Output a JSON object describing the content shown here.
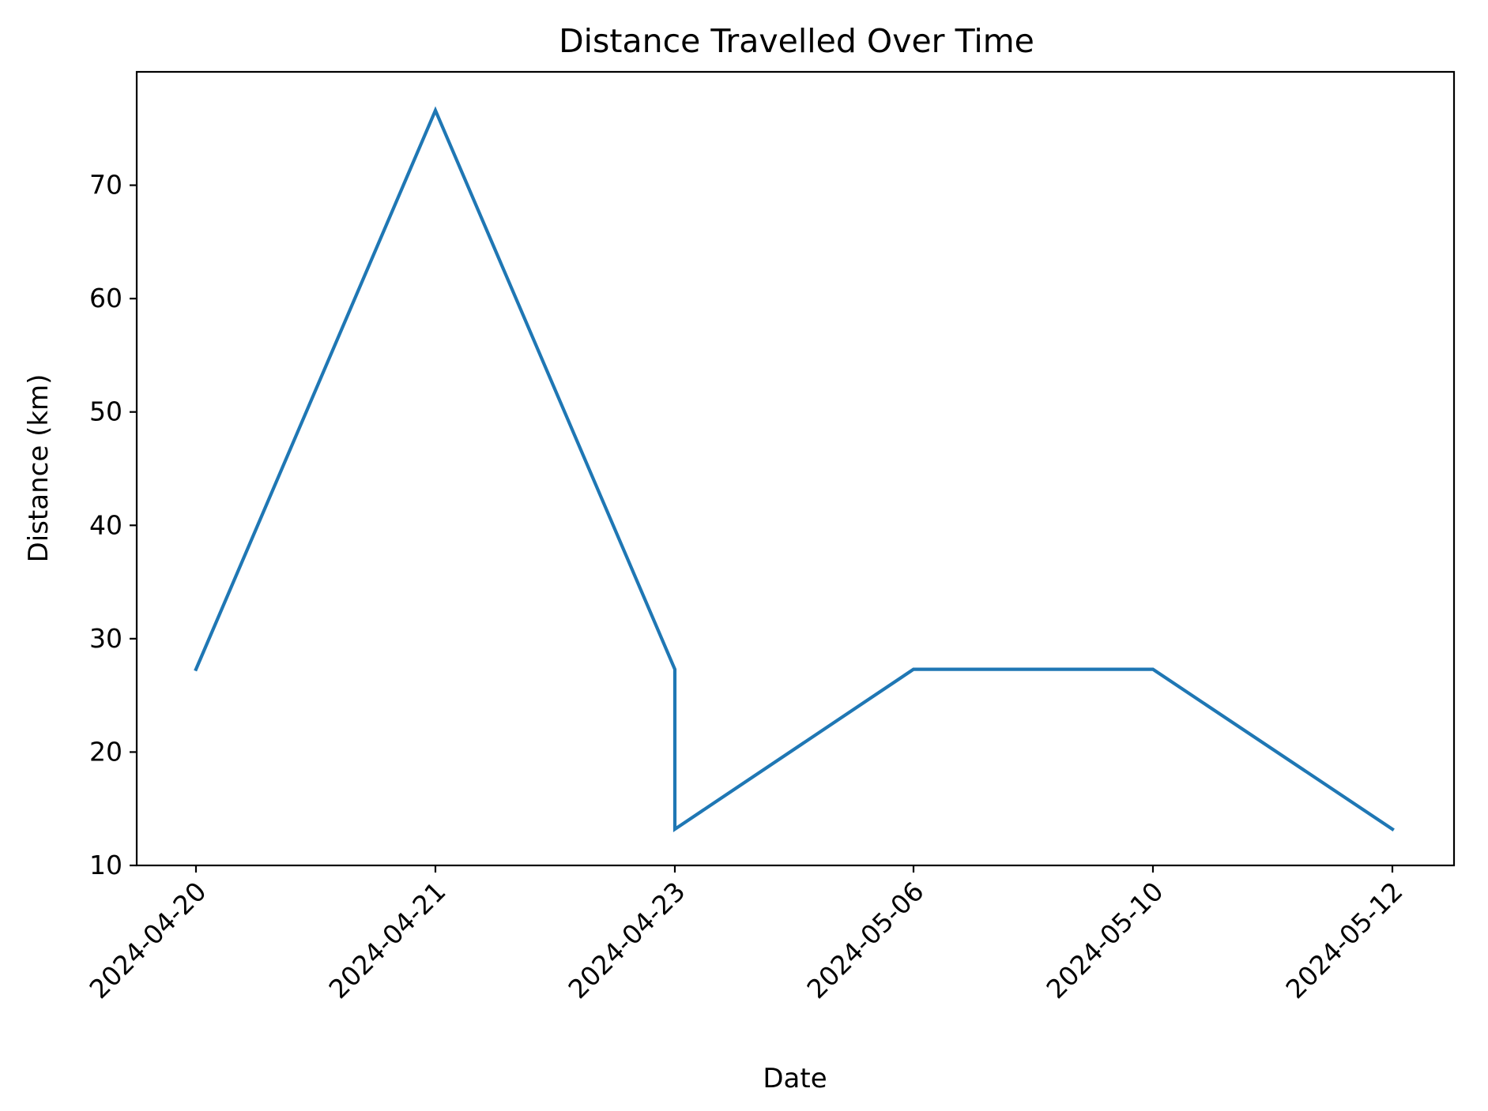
{
  "chart_data": {
    "type": "line",
    "title": "Distance Travelled Over Time",
    "xlabel": "Date",
    "ylabel": "Distance (km)",
    "categories": [
      "2024-04-20",
      "2024-04-21",
      "2024-04-23",
      "2024-04-23",
      "2024-05-06",
      "2024-05-10",
      "2024-05-12"
    ],
    "x_ticks": [
      "2024-04-20",
      "2024-04-21",
      "2024-04-23",
      "2024-05-06",
      "2024-05-10",
      "2024-05-12"
    ],
    "y_ticks": [
      10,
      20,
      30,
      40,
      50,
      60,
      70
    ],
    "ylim": [
      10,
      80
    ],
    "grid": false,
    "series": [
      {
        "values": [
          27.3,
          76.6,
          27.3,
          13.2,
          27.3,
          27.3,
          13.2
        ],
        "color": "#1f77b4"
      }
    ]
  }
}
